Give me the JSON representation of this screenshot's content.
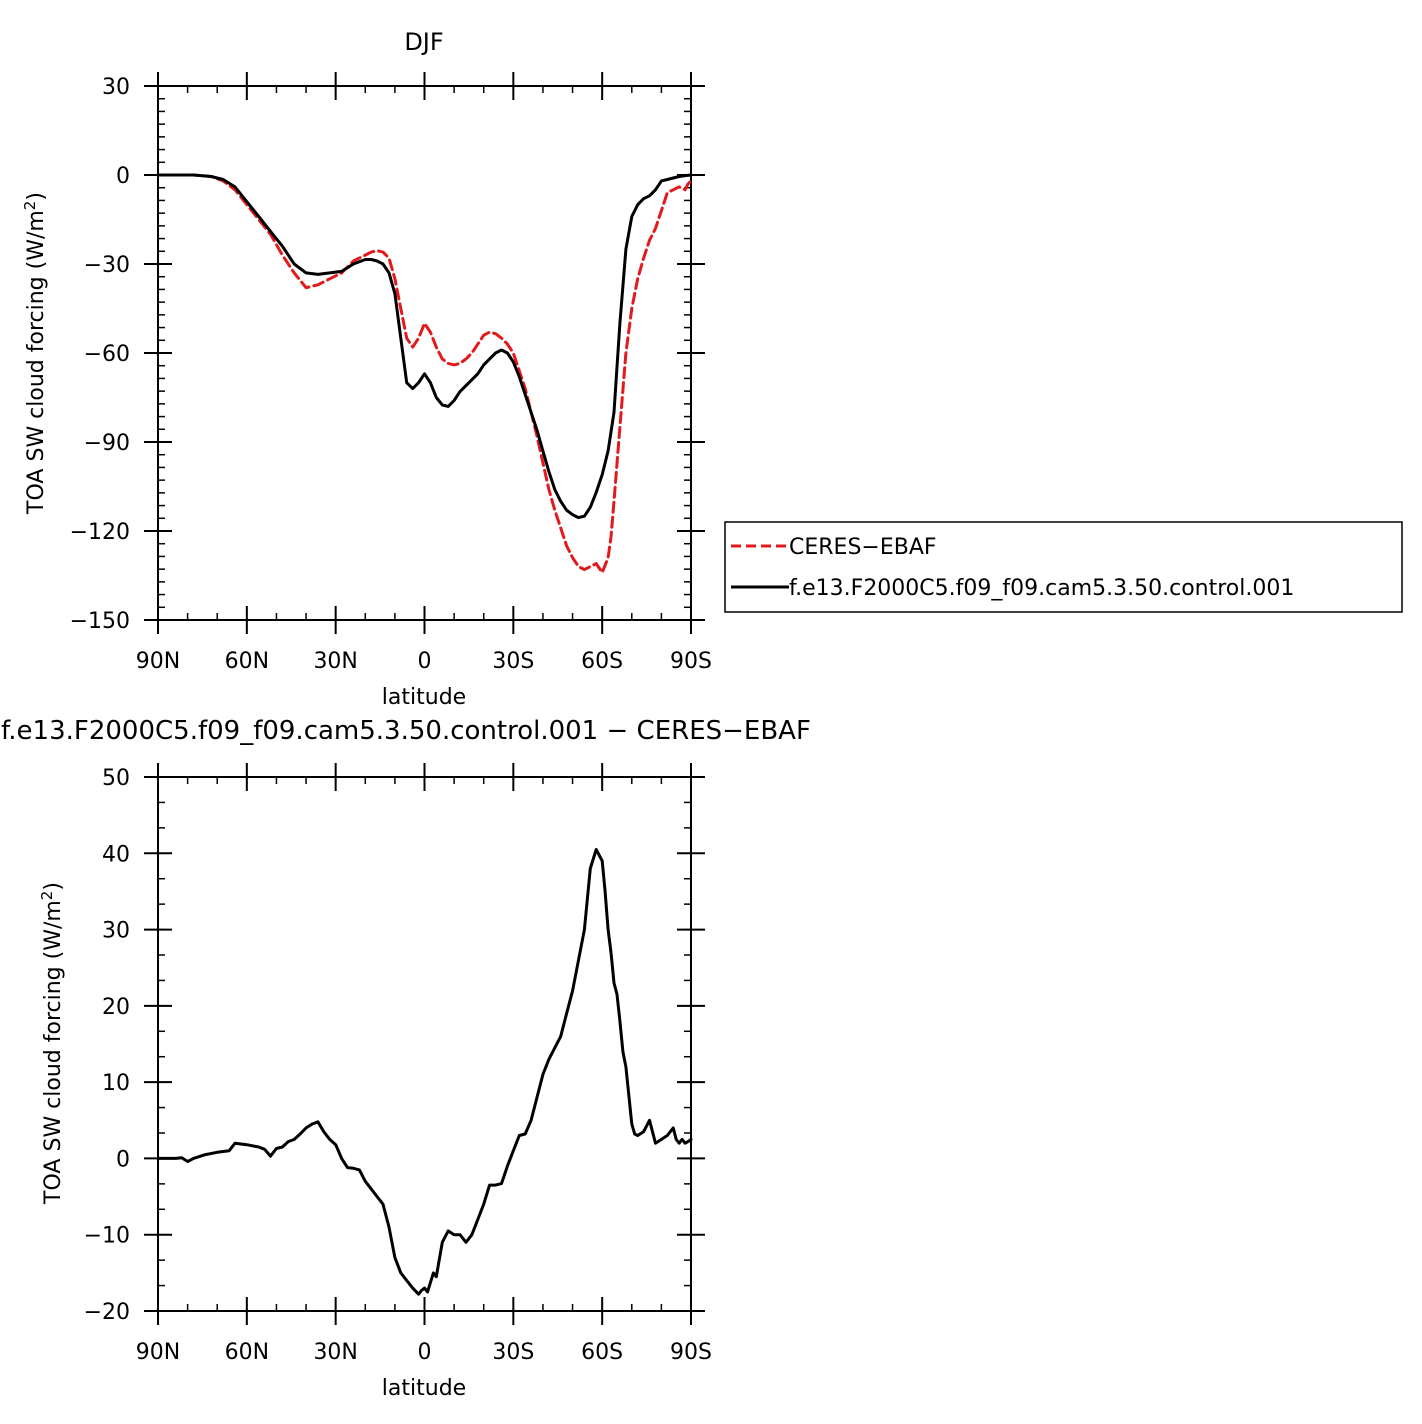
{
  "chart_data": [
    {
      "type": "line",
      "title": "DJF",
      "xlabel": "latitude",
      "ylabel_prefix": "TOA SW cloud forcing (W/m",
      "ylabel_sup": "2",
      "ylabel_suffix": ")",
      "xlim": [
        90,
        -90
      ],
      "ylim": [
        -150,
        30
      ],
      "x_ticks": [
        {
          "value": 90,
          "label": "90N"
        },
        {
          "value": 60,
          "label": "60N"
        },
        {
          "value": 30,
          "label": "30N"
        },
        {
          "value": 0,
          "label": "0"
        },
        {
          "value": -30,
          "label": "30S"
        },
        {
          "value": -60,
          "label": "60S"
        },
        {
          "value": -90,
          "label": "90S"
        }
      ],
      "y_ticks": [
        {
          "value": 30,
          "label": "30"
        },
        {
          "value": 0,
          "label": "0"
        },
        {
          "value": -30,
          "label": "−30"
        },
        {
          "value": -60,
          "label": "−60"
        },
        {
          "value": -90,
          "label": "−90"
        },
        {
          "value": -120,
          "label": "−120"
        },
        {
          "value": -150,
          "label": "−150"
        }
      ],
      "legend": {
        "placement": "right"
      },
      "series": [
        {
          "name": "CERES−EBAF",
          "color": "#e31a1c",
          "dash": "dashed",
          "x": [
            90,
            84,
            78,
            72,
            68,
            64,
            60,
            56,
            52,
            48,
            44,
            40,
            36,
            32,
            28,
            24,
            20,
            18,
            16,
            14,
            12,
            10,
            8,
            6,
            4,
            2,
            0,
            -2,
            -4,
            -6,
            -8,
            -10,
            -12,
            -14,
            -16,
            -18,
            -20,
            -22,
            -24,
            -26,
            -28,
            -30,
            -32,
            -34,
            -36,
            -38,
            -40,
            -42,
            -44,
            -46,
            -48,
            -50,
            -52,
            -54,
            -56,
            -58,
            -60,
            -62,
            -63,
            -64,
            -66,
            -68,
            -70,
            -72,
            -74,
            -76,
            -78,
            -80,
            -82,
            -84,
            -86,
            -88,
            -89,
            -90
          ],
          "y": [
            0,
            0,
            0,
            -0.5,
            -2,
            -5,
            -10,
            -15,
            -20,
            -27,
            -33,
            -38,
            -37,
            -35,
            -33,
            -29,
            -27,
            -26,
            -25.5,
            -26,
            -28,
            -35,
            -45,
            -55,
            -58,
            -55,
            -50,
            -53,
            -58,
            -62,
            -63.5,
            -64,
            -63.5,
            -62,
            -60,
            -57,
            -54,
            -53,
            -53.5,
            -55,
            -57,
            -60,
            -66,
            -72,
            -80,
            -88,
            -97,
            -106,
            -113,
            -119,
            -125,
            -129,
            -132,
            -133,
            -132,
            -131,
            -134,
            -129,
            -122,
            -110,
            -85,
            -60,
            -45,
            -35,
            -28,
            -22,
            -18,
            -12,
            -6,
            -5,
            -4,
            -5,
            -3,
            -2
          ]
        },
        {
          "name": "f.e13.F2000C5.f09_f09.cam5.3.50.control.001",
          "color": "#000000",
          "dash": "solid",
          "x": [
            90,
            84,
            78,
            72,
            68,
            64,
            60,
            56,
            52,
            48,
            44,
            40,
            36,
            32,
            28,
            24,
            20,
            18,
            16,
            14,
            12,
            10,
            8,
            6,
            4,
            2,
            0,
            -2,
            -4,
            -6,
            -8,
            -10,
            -12,
            -14,
            -16,
            -18,
            -20,
            -22,
            -24,
            -26,
            -28,
            -30,
            -32,
            -34,
            -36,
            -38,
            -40,
            -42,
            -44,
            -46,
            -48,
            -50,
            -52,
            -54,
            -56,
            -58,
            -60,
            -62,
            -64,
            -66,
            -68,
            -70,
            -72,
            -74,
            -76,
            -78,
            -80,
            -82,
            -84,
            -86,
            -88,
            -90
          ],
          "y": [
            0,
            0,
            0,
            -0.5,
            -1.5,
            -4,
            -9,
            -14,
            -19,
            -24,
            -30,
            -33,
            -33.5,
            -33,
            -32.5,
            -30,
            -28.5,
            -28.5,
            -29,
            -30,
            -33,
            -40,
            -55,
            -70,
            -72,
            -70,
            -67,
            -70,
            -75,
            -77.5,
            -78,
            -76,
            -73,
            -71,
            -69,
            -67,
            -64,
            -62,
            -60,
            -59,
            -60,
            -63,
            -68,
            -74,
            -80,
            -86,
            -93,
            -100,
            -106,
            -110,
            -113,
            -114.5,
            -115.5,
            -115,
            -112,
            -107,
            -101,
            -93,
            -80,
            -50,
            -25,
            -14,
            -10,
            -8,
            -7,
            -5,
            -2,
            -1.5,
            -1,
            -0.5,
            -0.2,
            0
          ]
        }
      ]
    },
    {
      "type": "line",
      "title": "f.e13.F2000C5.f09_f09.cam5.3.50.control.001 − CERES−EBAF",
      "xlabel": "latitude",
      "ylabel_prefix": "TOA SW cloud forcing (W/m",
      "ylabel_sup": "2",
      "ylabel_suffix": ")",
      "xlim": [
        90,
        -90
      ],
      "ylim": [
        -20,
        50
      ],
      "x_ticks": [
        {
          "value": 90,
          "label": "90N"
        },
        {
          "value": 60,
          "label": "60N"
        },
        {
          "value": 30,
          "label": "30N"
        },
        {
          "value": 0,
          "label": "0"
        },
        {
          "value": -30,
          "label": "30S"
        },
        {
          "value": -60,
          "label": "60S"
        },
        {
          "value": -90,
          "label": "90S"
        }
      ],
      "y_ticks": [
        {
          "value": 50,
          "label": "50"
        },
        {
          "value": 40,
          "label": "40"
        },
        {
          "value": 30,
          "label": "30"
        },
        {
          "value": 20,
          "label": "20"
        },
        {
          "value": 10,
          "label": "10"
        },
        {
          "value": 0,
          "label": "0"
        },
        {
          "value": -10,
          "label": "−10"
        },
        {
          "value": -20,
          "label": "−20"
        }
      ],
      "series": [
        {
          "color": "#000000",
          "dash": "solid",
          "x": [
            90,
            84,
            82,
            80,
            78,
            74,
            70,
            66,
            64,
            60,
            56,
            54,
            52,
            50,
            48,
            46,
            44,
            42,
            40,
            38,
            36,
            34,
            32,
            30,
            28,
            26,
            24,
            22,
            20,
            18,
            16,
            14,
            12,
            10,
            8,
            6,
            4,
            2,
            1,
            0,
            -1,
            -3,
            -4,
            -6,
            -8,
            -10,
            -12,
            -14,
            -16,
            -18,
            -20,
            -22,
            -24,
            -26,
            -28,
            -30,
            -32,
            -34,
            -36,
            -38,
            -40,
            -42,
            -44,
            -46,
            -48,
            -50,
            -52,
            -54,
            -56,
            -58,
            -60,
            -61,
            -62,
            -63,
            -64,
            -65,
            -66,
            -67,
            -68,
            -70,
            -71,
            -72,
            -74,
            -76,
            -78,
            -80,
            -82,
            -84,
            -85,
            -86,
            -87,
            -88,
            -89,
            -90
          ],
          "y": [
            0,
            0,
            0.1,
            -0.4,
            0,
            0.5,
            0.8,
            1,
            2,
            1.8,
            1.5,
            1.2,
            0.3,
            1.3,
            1.5,
            2.2,
            2.5,
            3.2,
            4,
            4.5,
            4.8,
            3.5,
            2.5,
            1.8,
            0,
            -1.2,
            -1.3,
            -1.5,
            -3,
            -4,
            -5,
            -6,
            -9,
            -13,
            -15,
            -16,
            -17,
            -17.8,
            -17.3,
            -17,
            -17.5,
            -15,
            -15.5,
            -11,
            -9.5,
            -10,
            -10,
            -11,
            -10,
            -8,
            -6,
            -3.5,
            -3.5,
            -3.3,
            -1,
            1,
            3,
            3.2,
            5,
            8,
            11,
            13,
            14.5,
            16,
            19,
            22,
            26,
            30,
            38,
            40.5,
            39,
            35,
            30,
            27,
            23,
            21.5,
            18,
            14,
            12,
            4.5,
            3.2,
            3,
            3.5,
            5,
            2,
            2.5,
            3,
            4,
            2.5,
            2,
            2.5,
            2,
            2.2,
            2.5
          ]
        }
      ]
    }
  ]
}
